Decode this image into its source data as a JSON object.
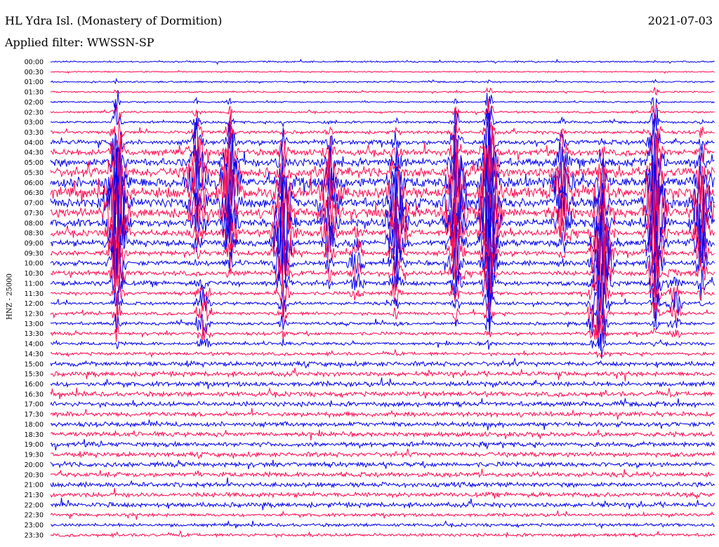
{
  "header": {
    "station": "HL Ydra Isl. (Monastery of Dormition)",
    "date": "2021-07-03",
    "filter": "Applied filter: WWSSN-SP"
  },
  "chart_data": {
    "type": "line",
    "chart_kind": "helicorder",
    "ylabel": "HNZ - 25000",
    "row_labels": [
      "00:00",
      "00:30",
      "01:00",
      "01:30",
      "02:00",
      "02:30",
      "03:00",
      "03:30",
      "04:00",
      "04:30",
      "05:00",
      "05:30",
      "06:00",
      "06:30",
      "07:00",
      "07:30",
      "08:00",
      "08:30",
      "09:00",
      "09:30",
      "10:00",
      "10:30",
      "11:00",
      "11:30",
      "12:00",
      "12:30",
      "13:00",
      "13:30",
      "14:00",
      "14:30",
      "15:00",
      "15:30",
      "16:00",
      "16:30",
      "17:00",
      "17:30",
      "18:00",
      "18:30",
      "19:00",
      "19:30",
      "20:00",
      "20:30",
      "21:00",
      "21:30",
      "22:00",
      "22:30",
      "23:00",
      "23:30"
    ],
    "series_colors": [
      "#0000ee",
      "#ff0a50"
    ],
    "row_noise_amplitude": [
      1,
      0.8,
      1,
      1,
      1,
      1.2,
      1.5,
      2,
      3,
      4,
      5,
      6,
      7,
      7,
      6,
      6,
      5,
      4,
      4,
      3,
      3,
      3,
      3,
      2,
      2,
      2,
      2,
      2,
      2,
      2,
      3,
      3,
      3,
      3,
      3,
      3,
      3,
      3,
      3,
      3,
      3,
      3,
      3,
      3,
      3,
      2,
      2,
      2
    ],
    "bursts": [
      {
        "x": 0.1,
        "start_row": 2,
        "end_row": 28,
        "peak": 100
      },
      {
        "x": 0.22,
        "start_row": 4,
        "end_row": 20,
        "peak": 60
      },
      {
        "x": 0.27,
        "start_row": 4,
        "end_row": 22,
        "peak": 80
      },
      {
        "x": 0.35,
        "start_row": 6,
        "end_row": 28,
        "peak": 80
      },
      {
        "x": 0.42,
        "start_row": 6,
        "end_row": 22,
        "peak": 60
      },
      {
        "x": 0.52,
        "start_row": 6,
        "end_row": 26,
        "peak": 70
      },
      {
        "x": 0.61,
        "start_row": 4,
        "end_row": 26,
        "peak": 90
      },
      {
        "x": 0.66,
        "start_row": 2,
        "end_row": 28,
        "peak": 120
      },
      {
        "x": 0.77,
        "start_row": 6,
        "end_row": 20,
        "peak": 60
      },
      {
        "x": 0.83,
        "start_row": 8,
        "end_row": 30,
        "peak": 90
      },
      {
        "x": 0.91,
        "start_row": 2,
        "end_row": 28,
        "peak": 110
      },
      {
        "x": 0.98,
        "start_row": 6,
        "end_row": 24,
        "peak": 70
      }
    ],
    "local_events": [
      {
        "x": 0.23,
        "row": 25,
        "peak": 30
      },
      {
        "x": 0.46,
        "row": 20,
        "peak": 25
      },
      {
        "x": 0.82,
        "row": 25,
        "peak": 35
      },
      {
        "x": 0.94,
        "row": 24,
        "peak": 20
      }
    ]
  }
}
